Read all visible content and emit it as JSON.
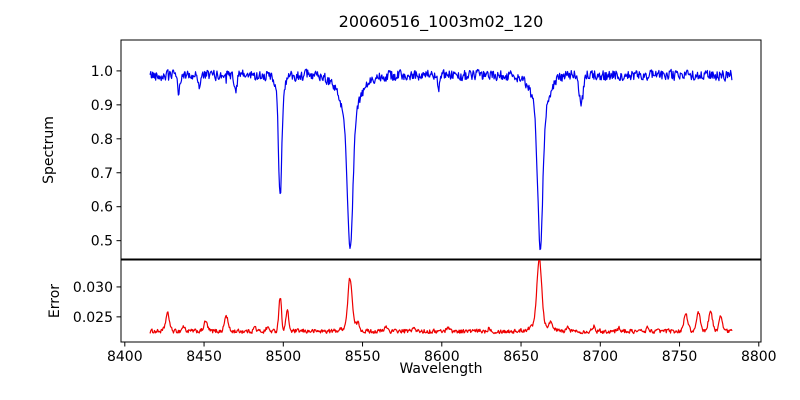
{
  "chart_data": {
    "type": "line",
    "title": "20060516_1003m02_120",
    "xlabel": "Wavelength",
    "legend": "none",
    "grid": false,
    "xlim": [
      8397.6,
      8801.4
    ],
    "xticks": [
      [
        8400,
        "8400"
      ],
      [
        8450,
        "8450"
      ],
      [
        8500,
        "8500"
      ],
      [
        8550,
        "8550"
      ],
      [
        8600,
        "8600"
      ],
      [
        8650,
        "8650"
      ],
      [
        8700,
        "8700"
      ],
      [
        8750,
        "8750"
      ],
      [
        8800,
        "8800"
      ]
    ],
    "data_x_range": [
      8416,
      8783
    ],
    "n_points": 950,
    "panels": [
      {
        "name": "spectrum",
        "ylabel": "Spectrum",
        "color": "#0000ee",
        "ylim": [
          0.446,
          1.091
        ],
        "yticks": [
          [
            0.5,
            "0.5"
          ],
          [
            0.6,
            "0.6"
          ],
          [
            0.7,
            "0.7"
          ],
          [
            0.8,
            "0.8"
          ],
          [
            0.9,
            "0.9"
          ],
          [
            1.0,
            "1.0"
          ]
        ],
        "continuum": 0.987,
        "noise_amp": 0.013,
        "absorption_lines": [
          [
            8434,
            0.05,
            0.8,
            0,
            1
          ],
          [
            8447,
            0.03,
            0.7,
            0,
            1
          ],
          [
            8470,
            0.05,
            0.8,
            0,
            1
          ],
          [
            8498.0,
            0.3,
            1.0,
            0.06,
            2.5
          ],
          [
            8542.1,
            0.4,
            1.7,
            0.115,
            6.5
          ],
          [
            8598,
            0.035,
            0.7,
            0,
            1
          ],
          [
            8662.1,
            0.4,
            1.6,
            0.1,
            5.5
          ],
          [
            8688,
            0.085,
            1.2,
            0,
            1
          ]
        ],
        "line_minima": {
          "8498": 0.645,
          "8542": 0.475,
          "8662": 0.49,
          "8688": 0.895
        }
      },
      {
        "name": "error",
        "ylabel": "Error",
        "color": "#ee0000",
        "ylim": [
          0.0208,
          0.0345
        ],
        "yticks": [
          [
            0.025,
            "0.025"
          ],
          [
            0.03,
            "0.030"
          ]
        ],
        "baseline": 0.0226,
        "noise_amp": 0.0003,
        "emission_peaks": [
          [
            8427,
            0.0029,
            1.2
          ],
          [
            8437,
            0.0008,
            0.9
          ],
          [
            8451,
            0.0016,
            1.1
          ],
          [
            8464,
            0.0026,
            1.1
          ],
          [
            8482,
            0.0007,
            0.8
          ],
          [
            8490,
            0.0007,
            0.8
          ],
          [
            8498,
            0.0058,
            0.85
          ],
          [
            8502.5,
            0.0034,
            0.9
          ],
          [
            8542.1,
            0.008,
            1.3
          ],
          [
            8547,
            0.001,
            1.0
          ],
          [
            8565,
            0.0008,
            0.9
          ],
          [
            8582,
            0.0006,
            0.8
          ],
          [
            8604,
            0.0008,
            0.9
          ],
          [
            8630,
            0.0006,
            0.8
          ],
          [
            8661.5,
            0.011,
            1.5
          ],
          [
            8669,
            0.0012,
            1.2
          ],
          [
            8680,
            0.0007,
            0.9
          ],
          [
            8696,
            0.0009,
            0.9
          ],
          [
            8712,
            0.0006,
            0.8
          ],
          [
            8730,
            0.0006,
            0.8
          ],
          [
            8754,
            0.0026,
            1.4
          ],
          [
            8762,
            0.003,
            1.1
          ],
          [
            8769.5,
            0.0033,
            1.2
          ],
          [
            8776,
            0.0028,
            1.0
          ]
        ],
        "broad_wings": [
          [
            8542.1,
            0.0009,
            4
          ],
          [
            8661.5,
            0.0012,
            5
          ]
        ],
        "peak_maxima": {
          "8498": 0.0285,
          "8542": 0.0308,
          "8662": 0.0341
        }
      }
    ],
    "colors": {
      "spectrum_line": "#0000ee",
      "error_line": "#ee0000",
      "axes": "#000000",
      "background": "#ffffff"
    }
  }
}
